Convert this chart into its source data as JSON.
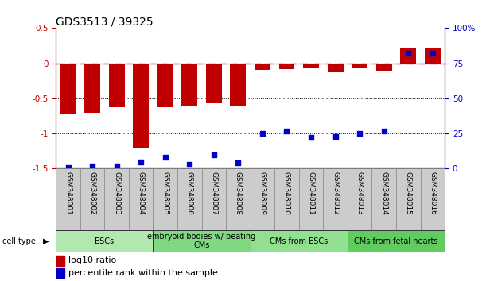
{
  "title": "GDS3513 / 39325",
  "samples": [
    "GSM348001",
    "GSM348002",
    "GSM348003",
    "GSM348004",
    "GSM348005",
    "GSM348006",
    "GSM348007",
    "GSM348008",
    "GSM348009",
    "GSM348010",
    "GSM348011",
    "GSM348012",
    "GSM348013",
    "GSM348014",
    "GSM348015",
    "GSM348016"
  ],
  "log10_ratio": [
    -0.72,
    -0.7,
    -0.62,
    -1.2,
    -0.63,
    -0.6,
    -0.57,
    -0.6,
    -0.1,
    -0.08,
    -0.07,
    -0.13,
    -0.07,
    -0.12,
    0.22,
    0.22
  ],
  "percentile_rank": [
    1,
    2,
    2,
    5,
    8,
    3,
    10,
    4,
    25,
    27,
    22,
    23,
    25,
    27,
    82,
    82
  ],
  "groups": [
    {
      "label": "ESCs",
      "start": 0,
      "end": 3,
      "color": "#b0e8b0"
    },
    {
      "label": "embryoid bodies w/ beating\nCMs",
      "start": 4,
      "end": 7,
      "color": "#80d880"
    },
    {
      "label": "CMs from ESCs",
      "start": 8,
      "end": 11,
      "color": "#90e090"
    },
    {
      "label": "CMs from fetal hearts",
      "start": 12,
      "end": 15,
      "color": "#60cc60"
    }
  ],
  "bar_color": "#C00000",
  "dot_color": "#0000CD",
  "ylim_left": [
    -1.5,
    0.5
  ],
  "ylim_right": [
    0,
    100
  ],
  "hline_zero_color": "#C00000",
  "background_color": "white",
  "title_fontsize": 10,
  "label_fontsize": 6.5,
  "group_fontsize": 7,
  "legend_fontsize": 8
}
